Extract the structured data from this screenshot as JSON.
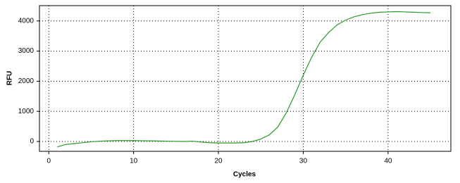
{
  "chart_data": {
    "type": "line",
    "x_label": "Cycles",
    "y_label": "RFU",
    "x": [
      1,
      2,
      3,
      4,
      5,
      6,
      7,
      8,
      9,
      10,
      11,
      12,
      13,
      14,
      15,
      16,
      17,
      18,
      19,
      20,
      21,
      22,
      23,
      24,
      25,
      26,
      27,
      28,
      29,
      30,
      31,
      32,
      33,
      34,
      35,
      36,
      37,
      38,
      39,
      40,
      41,
      42,
      43,
      44,
      45
    ],
    "series": [
      {
        "color": "#2a9a2a",
        "values": [
          -180,
          -100,
          -70,
          -40,
          -10,
          10,
          20,
          30,
          30,
          30,
          25,
          20,
          15,
          10,
          5,
          0,
          10,
          -20,
          -40,
          -50,
          -50,
          -50,
          -40,
          0,
          80,
          220,
          480,
          950,
          1550,
          2200,
          2800,
          3300,
          3620,
          3870,
          4030,
          4140,
          4210,
          4260,
          4290,
          4300,
          4310,
          4300,
          4290,
          4280,
          4270
        ]
      }
    ],
    "xlim": [
      -1.1,
      47.4
    ],
    "xticks": [
      0,
      10,
      20,
      30,
      40
    ],
    "ylim": [
      -327,
      4509
    ],
    "yticks": [
      0,
      1000,
      2000,
      3000,
      4000
    ],
    "grid": true
  }
}
